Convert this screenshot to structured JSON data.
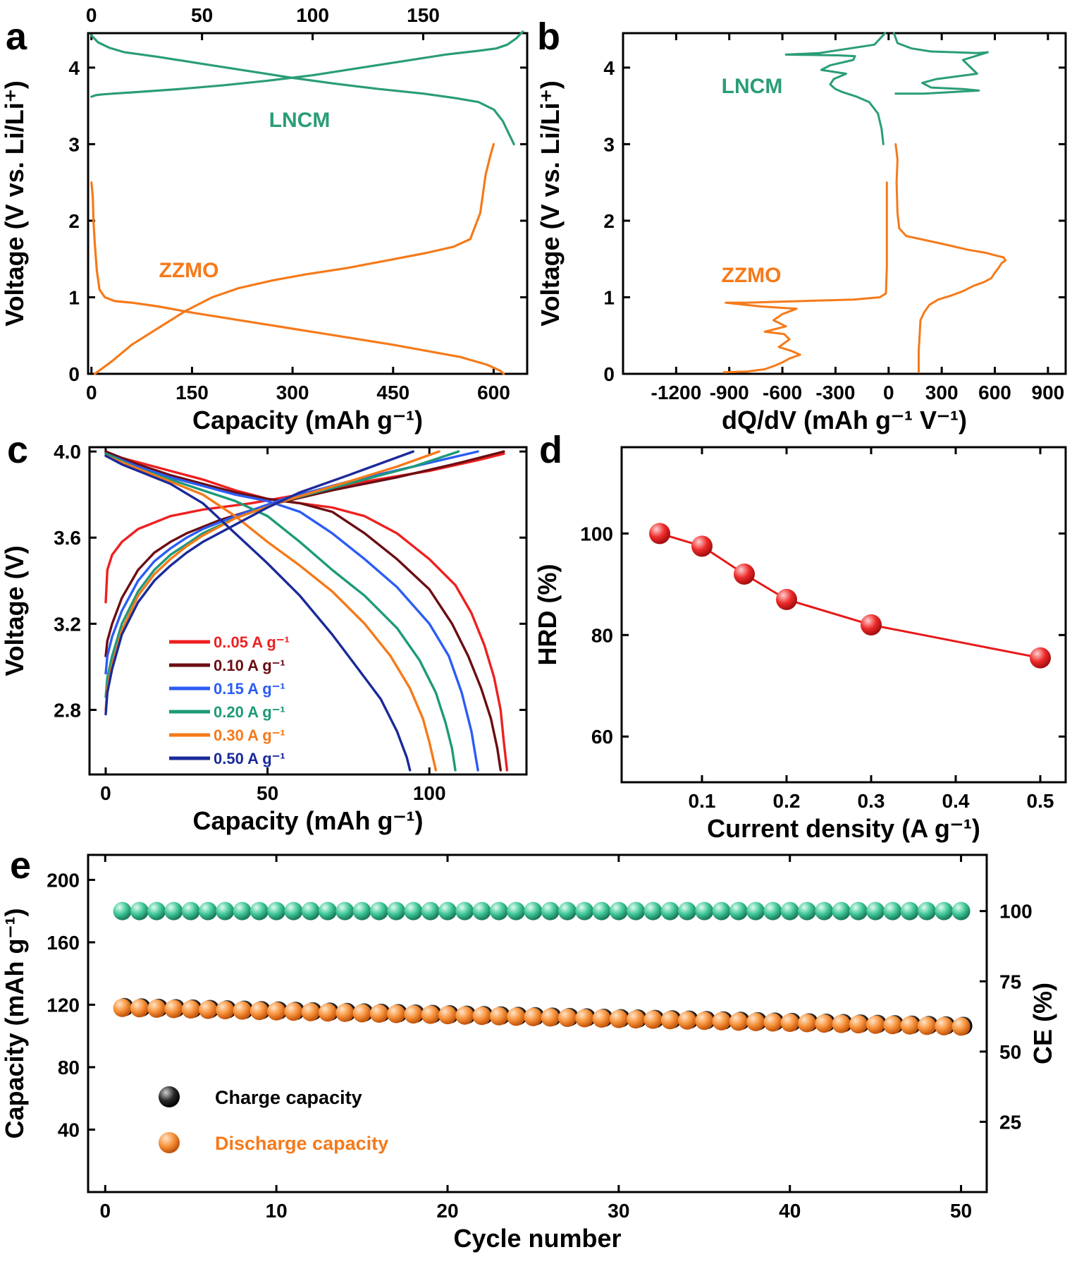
{
  "colors": {
    "green": "#2a9d78",
    "orange": "#f57a1a",
    "red": "#ee2020",
    "maroon": "#6b0d12",
    "blue": "#2b5cf5",
    "teal": "#1d9a78",
    "navy": "#1a2a9a",
    "black": "#111111",
    "dot_red": "#e81818"
  },
  "chart_data": [
    {
      "panel": "a",
      "type": "line",
      "xlabel": "Capacity (mAh g⁻¹)",
      "ylabel": "Voltage (V vs. Li/Li⁺)",
      "xlim": [
        -5,
        650
      ],
      "ylim": [
        0,
        4.45
      ],
      "xticks": [
        "0",
        "150",
        "300",
        "450",
        "600"
      ],
      "xtick_values": [
        0,
        150,
        300,
        450,
        600
      ],
      "yticks": [
        "0",
        "1",
        "2",
        "3",
        "4"
      ],
      "ytick_values": [
        0,
        1,
        2,
        3,
        4
      ],
      "top_axis": {
        "ticks": [
          "0",
          "50",
          "100",
          "150"
        ],
        "values": [
          0,
          50,
          100,
          150
        ],
        "lim": [
          -1.5,
          197
        ]
      },
      "series": [
        {
          "name": "LNCM charge",
          "color_key": "green",
          "axis": "top",
          "x": [
            0,
            2,
            5,
            10,
            20,
            40,
            60,
            80,
            100,
            120,
            140,
            160,
            175,
            183,
            188,
            192,
            195
          ],
          "y": [
            3.62,
            3.64,
            3.65,
            3.66,
            3.68,
            3.72,
            3.77,
            3.83,
            3.9,
            3.99,
            4.08,
            4.17,
            4.22,
            4.25,
            4.3,
            4.38,
            4.47
          ]
        },
        {
          "name": "LNCM discharge",
          "color_key": "green",
          "axis": "top",
          "x": [
            0,
            3,
            8,
            15,
            30,
            50,
            70,
            90,
            110,
            130,
            150,
            165,
            175,
            182,
            186,
            189,
            191
          ],
          "y": [
            4.42,
            4.33,
            4.26,
            4.2,
            4.14,
            4.05,
            3.96,
            3.87,
            3.79,
            3.72,
            3.66,
            3.6,
            3.55,
            3.45,
            3.3,
            3.12,
            3.0
          ]
        },
        {
          "name": "ZZMO discharge",
          "color_key": "orange",
          "axis": "bottom",
          "x": [
            0,
            2,
            3,
            5,
            8,
            12,
            20,
            35,
            60,
            100,
            150,
            200,
            250,
            300,
            350,
            400,
            450,
            500,
            550,
            590,
            610,
            615
          ],
          "y": [
            2.5,
            2.3,
            2.0,
            1.7,
            1.35,
            1.1,
            1.0,
            0.95,
            0.93,
            0.88,
            0.8,
            0.73,
            0.66,
            0.59,
            0.52,
            0.45,
            0.38,
            0.3,
            0.22,
            0.12,
            0.04,
            0.0
          ]
        },
        {
          "name": "ZZMO charge",
          "color_key": "orange",
          "axis": "bottom",
          "x": [
            5,
            30,
            60,
            100,
            140,
            180,
            220,
            270,
            320,
            380,
            440,
            500,
            540,
            565,
            580,
            588,
            595,
            600
          ],
          "y": [
            0.0,
            0.16,
            0.38,
            0.6,
            0.82,
            1.0,
            1.12,
            1.22,
            1.3,
            1.38,
            1.48,
            1.58,
            1.66,
            1.76,
            2.1,
            2.6,
            2.85,
            3.0
          ]
        }
      ],
      "labels": [
        {
          "text": "LNCM",
          "color_key": "green"
        },
        {
          "text": "ZZMO",
          "color_key": "orange"
        }
      ]
    },
    {
      "panel": "b",
      "type": "line",
      "xlabel": "dQ/dV (mAh g⁻¹ V⁻¹)",
      "ylabel": "Voltage (V vs. Li/Li⁺)",
      "xlim": [
        -1500,
        1000
      ],
      "ylim": [
        0,
        4.45
      ],
      "xticks": [
        "-1200",
        "-900",
        "-600",
        "-300",
        "0",
        "300",
        "600",
        "900"
      ],
      "xtick_values": [
        -1200,
        -900,
        -600,
        -300,
        0,
        300,
        600,
        900
      ],
      "yticks": [
        "0",
        "1",
        "2",
        "3",
        "4"
      ],
      "ytick_values": [
        0,
        1,
        2,
        3,
        4
      ],
      "series": [
        {
          "name": "LNCM discharge",
          "color_key": "green",
          "x": [
            -30,
            -40,
            -60,
            -110,
            -180,
            -260,
            -300,
            -330,
            -310,
            -240,
            -380,
            -330,
            -200,
            -190,
            -280,
            -580,
            -390,
            -80,
            -20
          ],
          "y": [
            3.0,
            3.2,
            3.4,
            3.55,
            3.62,
            3.68,
            3.72,
            3.78,
            3.85,
            3.92,
            3.97,
            4.03,
            4.1,
            4.15,
            4.16,
            4.17,
            4.19,
            4.3,
            4.45
          ]
        },
        {
          "name": "LNCM charge",
          "color_key": "green",
          "x": [
            30,
            50,
            130,
            240,
            380,
            500,
            560,
            420,
            500,
            270,
            190,
            240,
            420,
            510,
            200,
            80,
            40
          ],
          "y": [
            4.45,
            4.32,
            4.25,
            4.21,
            4.2,
            4.19,
            4.2,
            4.1,
            3.92,
            3.85,
            3.8,
            3.74,
            3.72,
            3.7,
            3.66,
            3.66,
            3.66
          ]
        },
        {
          "name": "ZZMO discharge",
          "color_key": "orange",
          "x": [
            -10,
            -10,
            -10,
            -15,
            -50,
            -200,
            -800,
            -920,
            -720,
            -520,
            -600,
            -650,
            -580,
            -700,
            -590,
            -560,
            -620,
            -550,
            -500,
            -560,
            -600,
            -650,
            -700,
            -800,
            -930
          ],
          "y": [
            2.5,
            2.0,
            1.4,
            1.05,
            1.0,
            0.97,
            0.93,
            0.93,
            0.88,
            0.85,
            0.78,
            0.7,
            0.62,
            0.55,
            0.52,
            0.45,
            0.35,
            0.3,
            0.25,
            0.2,
            0.15,
            0.1,
            0.06,
            0.03,
            0.02
          ]
        },
        {
          "name": "ZZMO charge",
          "color_key": "orange",
          "x": [
            170,
            170,
            175,
            180,
            200,
            230,
            280,
            350,
            420,
            480,
            540,
            580,
            600,
            620,
            640,
            660,
            650,
            600,
            550,
            450,
            300,
            100,
            60,
            50,
            45,
            50,
            40
          ],
          "y": [
            0.02,
            0.3,
            0.5,
            0.7,
            0.8,
            0.9,
            0.97,
            1.02,
            1.08,
            1.15,
            1.2,
            1.25,
            1.32,
            1.38,
            1.45,
            1.48,
            1.52,
            1.55,
            1.58,
            1.62,
            1.7,
            1.8,
            1.9,
            2.1,
            2.5,
            2.8,
            3.0
          ]
        }
      ],
      "labels": [
        {
          "text": "LNCM",
          "color_key": "green"
        },
        {
          "text": "ZZMO",
          "color_key": "orange"
        }
      ]
    },
    {
      "panel": "c",
      "type": "line",
      "xlabel": "Capacity (mAh g⁻¹)",
      "ylabel": "Voltage (V)",
      "xlim": [
        -5,
        130
      ],
      "ylim": [
        2.5,
        4.02
      ],
      "xticks": [
        "0",
        "50",
        "100"
      ],
      "xtick_values": [
        0,
        50,
        100
      ],
      "yticks": [
        "2.8",
        "3.2",
        "3.6",
        "4.0"
      ],
      "ytick_values": [
        2.8,
        3.2,
        3.6,
        4.0
      ],
      "series": [
        {
          "name": "0..05 A g⁻¹",
          "color_key": "red",
          "charge_x": [
            0,
            0.5,
            2,
            5,
            10,
            20,
            30,
            45,
            60,
            80,
            100,
            115,
            123
          ],
          "charge_y": [
            3.3,
            3.45,
            3.52,
            3.58,
            3.64,
            3.7,
            3.73,
            3.76,
            3.8,
            3.86,
            3.91,
            3.96,
            3.99
          ],
          "dis_x": [
            0,
            10,
            20,
            30,
            40,
            50,
            60,
            70,
            80,
            90,
            100,
            108,
            113,
            117,
            120,
            122,
            123,
            124
          ],
          "dis_y": [
            3.99,
            3.95,
            3.91,
            3.87,
            3.82,
            3.78,
            3.76,
            3.74,
            3.7,
            3.62,
            3.5,
            3.38,
            3.25,
            3.1,
            2.95,
            2.8,
            2.65,
            2.52
          ]
        },
        {
          "name": "0.10 A g⁻¹",
          "color_key": "maroon",
          "charge_x": [
            0,
            0.5,
            2,
            5,
            10,
            15,
            20,
            25,
            35,
            50,
            70,
            90,
            110,
            123
          ],
          "charge_y": [
            3.05,
            3.12,
            3.2,
            3.32,
            3.45,
            3.53,
            3.58,
            3.62,
            3.68,
            3.75,
            3.82,
            3.88,
            3.95,
            4.0
          ],
          "dis_x": [
            0,
            10,
            20,
            30,
            40,
            50,
            60,
            70,
            80,
            90,
            100,
            107,
            112,
            116,
            119,
            121,
            122
          ],
          "dis_y": [
            4.0,
            3.94,
            3.89,
            3.85,
            3.81,
            3.78,
            3.76,
            3.72,
            3.62,
            3.5,
            3.36,
            3.2,
            3.05,
            2.9,
            2.76,
            2.62,
            2.52
          ]
        },
        {
          "name": "0.15 A g⁻¹",
          "color_key": "blue",
          "charge_x": [
            0,
            0.5,
            2,
            5,
            10,
            15,
            20,
            25,
            30,
            40,
            55,
            75,
            95,
            115
          ],
          "charge_y": [
            2.97,
            3.05,
            3.14,
            3.26,
            3.4,
            3.49,
            3.55,
            3.6,
            3.64,
            3.7,
            3.78,
            3.86,
            3.93,
            4.0
          ],
          "dis_x": [
            0,
            10,
            20,
            30,
            40,
            50,
            60,
            70,
            80,
            90,
            100,
            106,
            110,
            113,
            115
          ],
          "dis_y": [
            3.99,
            3.93,
            3.88,
            3.84,
            3.8,
            3.77,
            3.72,
            3.62,
            3.5,
            3.37,
            3.2,
            3.05,
            2.88,
            2.7,
            2.52
          ]
        },
        {
          "name": "0.20 A g⁻¹",
          "color_key": "teal",
          "charge_x": [
            0,
            0.5,
            2,
            5,
            10,
            15,
            20,
            25,
            30,
            40,
            55,
            75,
            95,
            109
          ],
          "charge_y": [
            2.86,
            2.95,
            3.05,
            3.2,
            3.35,
            3.45,
            3.52,
            3.57,
            3.62,
            3.69,
            3.77,
            3.85,
            3.93,
            4.0
          ],
          "dis_x": [
            0,
            10,
            20,
            30,
            40,
            50,
            60,
            70,
            80,
            90,
            97,
            102,
            105,
            107,
            108
          ],
          "dis_y": [
            3.99,
            3.92,
            3.87,
            3.82,
            3.77,
            3.7,
            3.58,
            3.45,
            3.33,
            3.18,
            3.03,
            2.88,
            2.74,
            2.62,
            2.52
          ]
        },
        {
          "name": "0.30 A g⁻¹",
          "color_key": "orange",
          "charge_x": [
            0,
            0.5,
            2,
            5,
            10,
            15,
            20,
            25,
            30,
            40,
            55,
            75,
            90,
            103
          ],
          "charge_y": [
            2.8,
            2.9,
            3.01,
            3.17,
            3.33,
            3.43,
            3.5,
            3.56,
            3.61,
            3.69,
            3.77,
            3.86,
            3.93,
            4.0
          ],
          "dis_x": [
            0,
            10,
            20,
            30,
            40,
            50,
            60,
            70,
            80,
            88,
            94,
            98,
            100,
            102
          ],
          "dis_y": [
            3.98,
            3.92,
            3.86,
            3.8,
            3.7,
            3.58,
            3.47,
            3.35,
            3.2,
            3.05,
            2.9,
            2.76,
            2.65,
            2.52
          ]
        },
        {
          "name": "0.50 A g⁻¹",
          "color_key": "navy",
          "charge_x": [
            0,
            0.5,
            2,
            5,
            10,
            15,
            20,
            25,
            30,
            40,
            50,
            60,
            75,
            95
          ],
          "charge_y": [
            2.78,
            2.88,
            2.99,
            3.15,
            3.3,
            3.4,
            3.47,
            3.53,
            3.58,
            3.66,
            3.74,
            3.81,
            3.89,
            4.0
          ],
          "dis_x": [
            0,
            5,
            10,
            20,
            30,
            40,
            50,
            60,
            70,
            80,
            85,
            90,
            93,
            94
          ],
          "dis_y": [
            3.98,
            3.94,
            3.91,
            3.85,
            3.76,
            3.62,
            3.48,
            3.33,
            3.15,
            2.95,
            2.85,
            2.7,
            2.58,
            2.52
          ]
        }
      ]
    },
    {
      "panel": "d",
      "type": "scatter",
      "xlabel": "Current density (A g⁻¹)",
      "ylabel": "HRD (%)",
      "xlim": [
        0.005,
        0.53
      ],
      "ylim": [
        51,
        117
      ],
      "xticks": [
        "0.1",
        "0.2",
        "0.3",
        "0.4",
        "0.5"
      ],
      "xtick_values": [
        0.1,
        0.2,
        0.3,
        0.4,
        0.5
      ],
      "yticks": [
        "60",
        "80",
        "100"
      ],
      "ytick_values": [
        60,
        80,
        100
      ],
      "x": [
        0.05,
        0.1,
        0.15,
        0.2,
        0.3,
        0.5
      ],
      "y": [
        100,
        97.5,
        92,
        87,
        82,
        75.5
      ]
    },
    {
      "panel": "e",
      "type": "scatter",
      "xlabel": "Cycle number",
      "ylabel": "Capacity (mAh g⁻¹)",
      "ylabel_right": "CE (%)",
      "xlim": [
        -1,
        51.5
      ],
      "ylim": [
        0,
        216
      ],
      "right_ylim": [
        0,
        120
      ],
      "xticks": [
        "0",
        "10",
        "20",
        "30",
        "40",
        "50"
      ],
      "xtick_values": [
        0,
        10,
        20,
        30,
        40,
        50
      ],
      "yticks": [
        "40",
        "80",
        "120",
        "160",
        "200"
      ],
      "ytick_values": [
        40,
        80,
        120,
        160,
        200
      ],
      "right_yticks": [
        "25",
        "50",
        "75",
        "100"
      ],
      "right_ytick_values": [
        25,
        50,
        75,
        100
      ],
      "ce": {
        "start": 1,
        "end": 50,
        "value": 100
      },
      "charge": {
        "start": 1,
        "end": 50,
        "from": 118.5,
        "to": 106.5
      },
      "discharge": {
        "start": 1,
        "end": 50,
        "from": 118,
        "to": 106
      },
      "legend": [
        {
          "text": "Charge capacity",
          "color_key": "black"
        },
        {
          "text": "Discharge capacity",
          "color_key": "orange"
        }
      ]
    }
  ],
  "panel_labels": [
    "a",
    "b",
    "c",
    "d",
    "e"
  ]
}
